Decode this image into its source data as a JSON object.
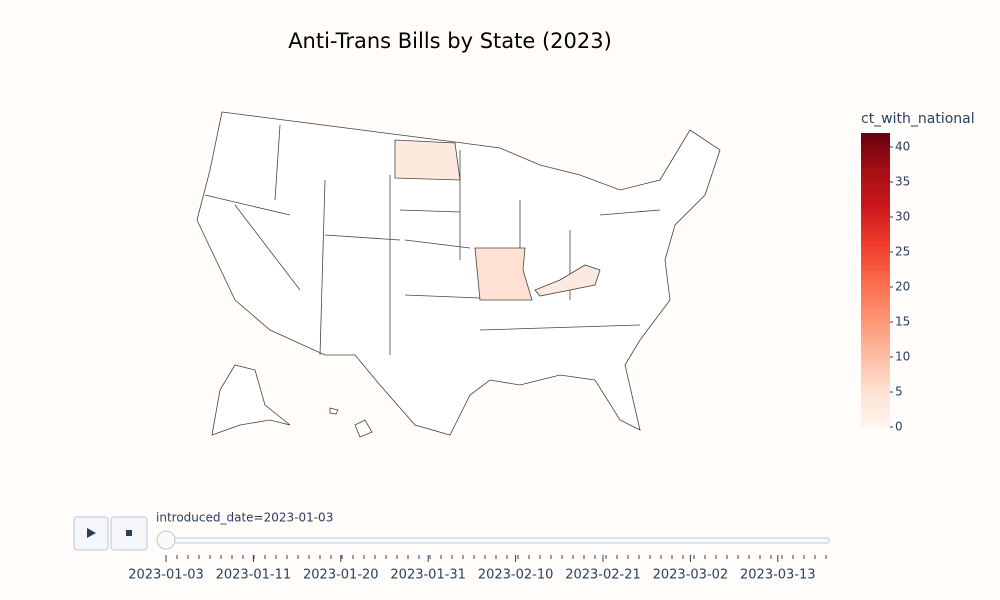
{
  "chart_data": {
    "type": "choropleth",
    "title": "Anti-Trans Bills by State (2023)",
    "values": [
      3,
      5,
      3
    ],
    "colorbar_title": "ct_with_national",
    "zlim": [
      0,
      42
    ],
    "zticks": [
      0,
      5,
      10,
      15,
      20,
      25,
      30,
      35,
      40
    ],
    "colorscale": [
      "#fff5f0",
      "#fee0d2",
      "#fcbba1",
      "#fc9272",
      "#fb6a4a",
      "#ef3b2c",
      "#cb181d",
      "#a50f15",
      "#67000d"
    ],
    "slider": {
      "current_label": "introduced_date=2023-01-03",
      "tick_labels": [
        "2023-01-03",
        "2023-01-11",
        "2023-01-20",
        "2023-01-31",
        "2023-02-10",
        "2023-02-21",
        "2023-03-02",
        "2023-03-13"
      ]
    }
  }
}
